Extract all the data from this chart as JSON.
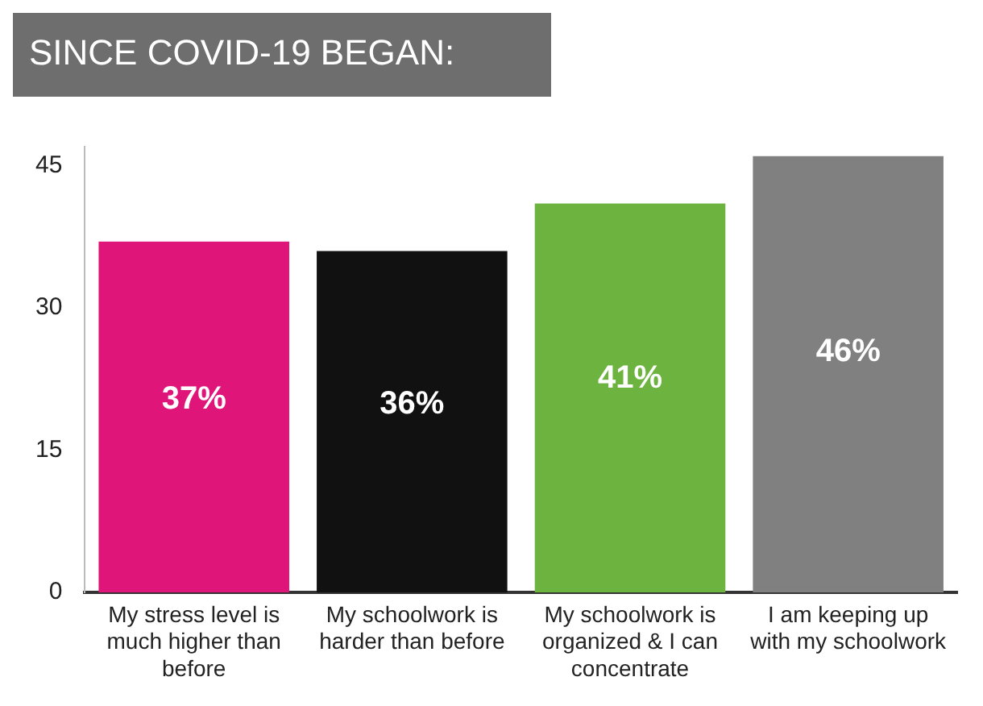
{
  "chart_data": {
    "type": "bar",
    "title": "SINCE COVID-19 BEGAN:",
    "categories": [
      "My stress level is much higher than before",
      "My schoolwork is harder than before",
      "My schoolwork is organized & I can concentrate",
      "I am keeping up with my schoolwork"
    ],
    "values": [
      37,
      36,
      41,
      46
    ],
    "value_labels": [
      "37%",
      "36%",
      "41%",
      "46%"
    ],
    "colors": [
      "#e0157a",
      "#111111",
      "#6cb33f",
      "#808080"
    ],
    "ylim": [
      0,
      47
    ],
    "yticks": [
      0,
      15,
      30,
      45
    ],
    "grid": false,
    "legend": false
  }
}
